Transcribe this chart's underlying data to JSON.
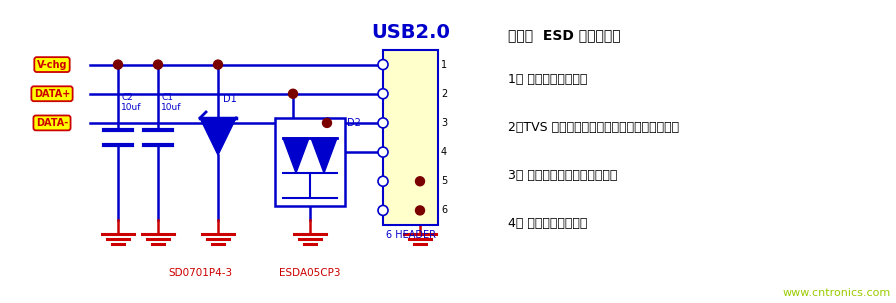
{
  "bg_color": "#ffffff",
  "fig_width": 8.96,
  "fig_height": 3.03,
  "dpi": 100,
  "circuit": {
    "usb_label": "USB2.0",
    "usb_label_color": "#0000cc",
    "connector_labels": [
      "V-chg",
      "DATA+",
      "DATA-"
    ],
    "connector_label_color": "#cc0000",
    "connector_bg": "#ffff00",
    "connector_border": "#cc0000",
    "line_color": "#0000cc",
    "line_width": 1.5,
    "ground_color": "#cc0000",
    "dot_color": "#7a0000",
    "comp_label_color": "#0000cc",
    "sd_label": "SD0701P4-3",
    "esda_label": "ESDA05CP3",
    "sd_label_color": "#cc0000",
    "esda_label_color": "#cc0000",
    "header_label": "6 HEADER"
  },
  "notes": {
    "title": "备注：  ESD 选型原则：",
    "title_color": "#000000",
    "items": [
      "1、 选择合适的封装；",
      "2、TVS 的击穿电压大于电路的最大工作电压；",
      "3、 选择符合测试要求的功率；",
      "4、 选择算位较小的。"
    ],
    "item_color": "#000000",
    "website": "www.cntronics.com",
    "website_color": "#99cc00"
  }
}
